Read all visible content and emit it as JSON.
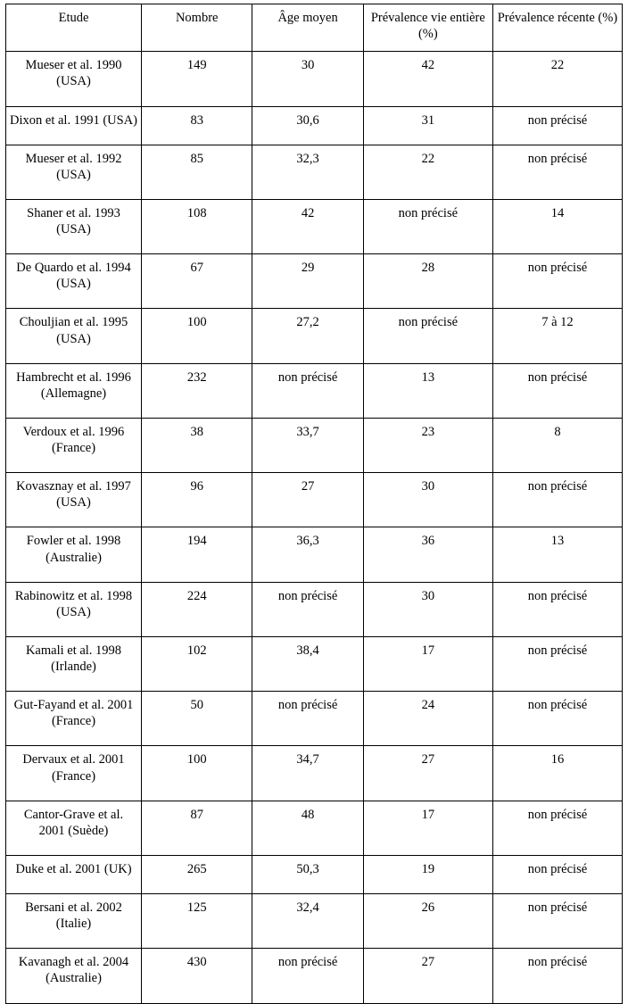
{
  "table": {
    "columns": [
      "Etude",
      "Nombre",
      "Âge moyen",
      "Prévalence vie entière (%)",
      "Prévalence récente (%)"
    ],
    "rows": [
      {
        "study": "Mueser et al. 1990 (USA)",
        "n": "149",
        "age": "30",
        "life": "42",
        "recent": "22"
      },
      {
        "study": "Dixon et al. 1991 (USA)",
        "n": "83",
        "age": "30,6",
        "life": "31",
        "recent": "non précisé"
      },
      {
        "study": "Mueser et al. 1992 (USA)",
        "n": "85",
        "age": "32,3",
        "life": "22",
        "recent": "non précisé"
      },
      {
        "study": "Shaner et al. 1993 (USA)",
        "n": "108",
        "age": "42",
        "life": "non précisé",
        "recent": "14"
      },
      {
        "study": "De Quardo et al. 1994 (USA)",
        "n": "67",
        "age": "29",
        "life": "28",
        "recent": "non précisé"
      },
      {
        "study": "Chouljian et al. 1995 (USA)",
        "n": "100",
        "age": "27,2",
        "life": "non précisé",
        "recent": "7 à 12"
      },
      {
        "study": "Hambrecht et al. 1996 (Allemagne)",
        "n": "232",
        "age": "non précisé",
        "life": "13",
        "recent": "non précisé"
      },
      {
        "study": "Verdoux et al. 1996 (France)",
        "n": "38",
        "age": "33,7",
        "life": "23",
        "recent": "8"
      },
      {
        "study": "Kovasznay et al. 1997 (USA)",
        "n": "96",
        "age": "27",
        "life": "30",
        "recent": "non précisé"
      },
      {
        "study": "Fowler et al. 1998 (Australie)",
        "n": "194",
        "age": "36,3",
        "life": "36",
        "recent": "13"
      },
      {
        "study": "Rabinowitz et al. 1998 (USA)",
        "n": "224",
        "age": "non précisé",
        "life": "30",
        "recent": "non précisé"
      },
      {
        "study": "Kamali et al. 1998 (Irlande)",
        "n": "102",
        "age": "38,4",
        "life": "17",
        "recent": "non précisé"
      },
      {
        "study": "Gut-Fayand et al. 2001 (France)",
        "n": "50",
        "age": "non précisé",
        "life": "24",
        "recent": "non précisé"
      },
      {
        "study": "Dervaux et al. 2001 (France)",
        "n": "100",
        "age": "34,7",
        "life": "27",
        "recent": "16"
      },
      {
        "study": "Cantor-Grave et al. 2001 (Suède)",
        "n": "87",
        "age": "48",
        "life": "17",
        "recent": "non précisé"
      },
      {
        "study": "Duke et al. 2001 (UK)",
        "n": "265",
        "age": "50,3",
        "life": "19",
        "recent": "non précisé"
      },
      {
        "study": "Bersani et al. 2002 (Italie)",
        "n": "125",
        "age": "32,4",
        "life": "26",
        "recent": "non précisé"
      },
      {
        "study": "Kavanagh et al. 2004 (Australie)",
        "n": "430",
        "age": "non précisé",
        "life": "27",
        "recent": "non précisé"
      }
    ],
    "style": {
      "border_color": "#000000",
      "text_color": "#000000",
      "background": "#ffffff",
      "font_family": "Times New Roman",
      "font_size_pt": 11,
      "header_align": "center",
      "cell_align": "center",
      "col_widths_pct": [
        22,
        18,
        18,
        21,
        21
      ]
    }
  }
}
